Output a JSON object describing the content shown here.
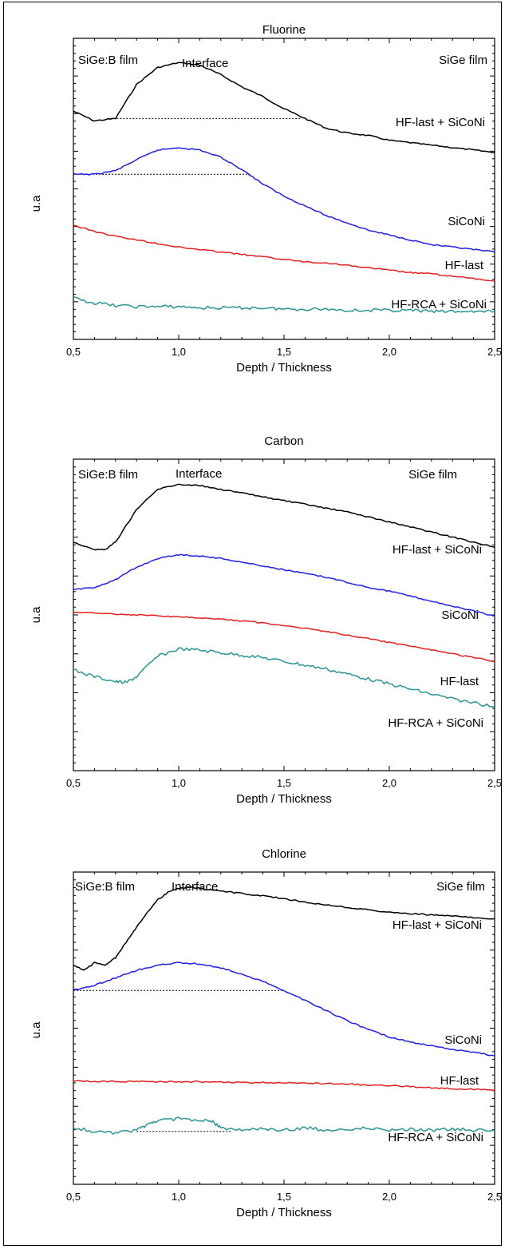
{
  "chart_data": [
    {
      "type": "line",
      "title": "Fluorine",
      "xlabel": "Depth / Thickness",
      "ylabel": "u.a",
      "xlim": [
        0.5,
        2.5
      ],
      "xticks": [
        "0,5",
        "1,0",
        "1,5",
        "2,0",
        "2,5"
      ],
      "region_labels": [
        "SiGe:B film",
        "Interface",
        "SiGe film"
      ],
      "series": [
        {
          "name": "HF-last + SiCoNi",
          "color": "#000000",
          "x": [
            0.5,
            0.6,
            0.7,
            0.8,
            0.9,
            1.0,
            1.1,
            1.2,
            1.3,
            1.4,
            1.5,
            1.6,
            1.7,
            1.8,
            1.9,
            2.0,
            2.1,
            2.2,
            2.3,
            2.4,
            2.5
          ],
          "y": [
            8.2,
            7.8,
            7.9,
            9.3,
            10.0,
            10.2,
            10.1,
            9.7,
            9.2,
            8.8,
            8.3,
            7.9,
            7.5,
            7.3,
            7.2,
            7.0,
            6.9,
            6.8,
            6.7,
            6.6,
            6.5
          ]
        },
        {
          "name": "SiCoNi",
          "color": "#1f1fe6",
          "x": [
            0.5,
            0.6,
            0.7,
            0.8,
            0.9,
            1.0,
            1.1,
            1.2,
            1.3,
            1.4,
            1.5,
            1.6,
            1.7,
            1.8,
            1.9,
            2.0,
            2.1,
            2.2,
            2.3,
            2.4,
            2.5
          ],
          "y": [
            5.6,
            5.6,
            5.75,
            6.2,
            6.6,
            6.7,
            6.6,
            6.3,
            5.8,
            5.2,
            4.7,
            4.3,
            3.9,
            3.6,
            3.3,
            3.1,
            2.9,
            2.7,
            2.6,
            2.5,
            2.4
          ]
        },
        {
          "name": "HF-last",
          "color": "#e62020",
          "x": [
            0.5,
            0.6,
            0.7,
            0.8,
            0.9,
            1.0,
            1.1,
            1.2,
            1.3,
            1.4,
            1.5,
            1.6,
            1.7,
            1.8,
            1.9,
            2.0,
            2.1,
            2.2,
            2.3,
            2.4,
            2.5
          ],
          "y": [
            3.5,
            3.25,
            3.05,
            2.9,
            2.75,
            2.6,
            2.5,
            2.4,
            2.3,
            2.2,
            2.1,
            2.0,
            1.95,
            1.85,
            1.75,
            1.65,
            1.55,
            1.5,
            1.4,
            1.3,
            1.2
          ]
        },
        {
          "name": "HF-RCA + SiCoNi",
          "color": "#2a9494",
          "x": [
            0.5,
            0.6,
            0.7,
            0.8,
            0.9,
            1.0,
            1.1,
            1.2,
            1.3,
            1.4,
            1.5,
            1.6,
            1.7,
            1.8,
            1.9,
            2.0,
            2.1,
            2.2,
            2.3,
            2.4,
            2.5
          ],
          "y": [
            0.5,
            0.3,
            0.2,
            0.15,
            0.15,
            0.15,
            0.1,
            0.1,
            0.1,
            0.1,
            0.05,
            0.05,
            0.05,
            0.0,
            0.0,
            0.0,
            0.0,
            -0.05,
            -0.05,
            -0.05,
            -0.05
          ]
        }
      ]
    },
    {
      "type": "line",
      "title": "Carbon",
      "xlabel": "Depth / Thickness",
      "ylabel": "u.a",
      "xlim": [
        0.5,
        2.5
      ],
      "xticks": [
        "0,5",
        "1,0",
        "1,5",
        "2,0",
        "2,5"
      ],
      "region_labels": [
        "SiGe:B film",
        "Interface",
        "SiGe film"
      ],
      "series": [
        {
          "name": "HF-last + SiCoNi",
          "color": "#000000",
          "x": [
            0.5,
            0.6,
            0.65,
            0.7,
            0.8,
            0.9,
            1.0,
            1.1,
            1.2,
            1.3,
            1.4,
            1.5,
            1.6,
            1.7,
            1.8,
            1.9,
            2.0,
            2.1,
            2.2,
            2.3,
            2.4,
            2.5
          ],
          "y": [
            7.9,
            7.6,
            7.6,
            7.9,
            9.2,
            10.0,
            10.2,
            10.15,
            10.0,
            9.85,
            9.7,
            9.55,
            9.4,
            9.25,
            9.1,
            8.9,
            8.7,
            8.5,
            8.3,
            8.1,
            7.9,
            7.7
          ]
        },
        {
          "name": "SiCoNi",
          "color": "#1f1fe6",
          "x": [
            0.5,
            0.6,
            0.7,
            0.8,
            0.9,
            1.0,
            1.1,
            1.2,
            1.3,
            1.4,
            1.5,
            1.6,
            1.7,
            1.8,
            1.9,
            2.0,
            2.1,
            2.2,
            2.3,
            2.4,
            2.5
          ],
          "y": [
            6.0,
            6.1,
            6.4,
            6.9,
            7.25,
            7.4,
            7.35,
            7.25,
            7.1,
            6.95,
            6.8,
            6.65,
            6.5,
            6.3,
            6.1,
            5.95,
            5.75,
            5.55,
            5.35,
            5.15,
            4.95
          ]
        },
        {
          "name": "HF-last",
          "color": "#e62020",
          "x": [
            0.5,
            0.6,
            0.7,
            0.8,
            0.9,
            1.0,
            1.1,
            1.2,
            1.3,
            1.4,
            1.5,
            1.6,
            1.7,
            1.8,
            1.9,
            2.0,
            2.1,
            2.2,
            2.3,
            2.4,
            2.5
          ],
          "y": [
            5.1,
            5.07,
            5.04,
            5.0,
            4.96,
            4.92,
            4.88,
            4.83,
            4.76,
            4.68,
            4.58,
            4.47,
            4.35,
            4.2,
            4.05,
            3.9,
            3.75,
            3.6,
            3.45,
            3.3,
            3.15
          ]
        },
        {
          "name": "HF-RCA + SiCoNi",
          "color": "#2a9494",
          "x": [
            0.5,
            0.6,
            0.7,
            0.75,
            0.8,
            0.9,
            1.0,
            1.1,
            1.2,
            1.3,
            1.4,
            1.5,
            1.6,
            1.7,
            1.8,
            1.9,
            2.0,
            2.1,
            2.2,
            2.3,
            2.4,
            2.5
          ],
          "y": [
            2.8,
            2.55,
            2.35,
            2.3,
            2.55,
            3.35,
            3.65,
            3.6,
            3.5,
            3.4,
            3.3,
            3.15,
            3.0,
            2.85,
            2.65,
            2.45,
            2.25,
            2.05,
            1.85,
            1.65,
            1.5,
            1.35
          ]
        }
      ]
    },
    {
      "type": "line",
      "title": "Chlorine",
      "xlabel": "Depth / Thickness",
      "ylabel": "u.a",
      "xlim": [
        0.5,
        2.5
      ],
      "xticks": [
        "0,5",
        "1,0",
        "1,5",
        "2,0",
        "2,5"
      ],
      "region_labels": [
        "SiGe:B film",
        "Interface",
        "SiGe film"
      ],
      "series": [
        {
          "name": "HF-last + SiCoNi",
          "color": "#000000",
          "x": [
            0.5,
            0.55,
            0.6,
            0.65,
            0.7,
            0.75,
            0.8,
            0.85,
            0.9,
            0.95,
            1.0,
            1.05,
            1.1,
            1.2,
            1.3,
            1.4,
            1.5,
            1.6,
            1.7,
            1.8,
            1.9,
            2.0,
            2.1,
            2.2,
            2.3,
            2.4,
            2.5
          ],
          "y": [
            7.5,
            7.3,
            7.6,
            7.5,
            7.8,
            8.4,
            9.0,
            9.6,
            10.1,
            10.4,
            10.55,
            10.6,
            10.55,
            10.45,
            10.35,
            10.25,
            10.15,
            10.0,
            9.9,
            9.8,
            9.7,
            9.6,
            9.55,
            9.5,
            9.45,
            9.4,
            9.35
          ]
        },
        {
          "name": "SiCoNi",
          "color": "#1f1fe6",
          "x": [
            0.5,
            0.6,
            0.7,
            0.8,
            0.9,
            1.0,
            1.1,
            1.2,
            1.3,
            1.4,
            1.5,
            1.6,
            1.7,
            1.8,
            1.9,
            2.0,
            2.1,
            2.2,
            2.3,
            2.4,
            2.5
          ],
          "y": [
            6.5,
            6.7,
            7.0,
            7.3,
            7.5,
            7.6,
            7.55,
            7.4,
            7.15,
            6.85,
            6.5,
            6.1,
            5.7,
            5.3,
            4.95,
            4.65,
            4.45,
            4.3,
            4.15,
            4.05,
            3.9
          ]
        },
        {
          "name": "HF-last",
          "color": "#e62020",
          "x": [
            0.5,
            0.6,
            0.7,
            0.8,
            0.9,
            1.0,
            1.1,
            1.2,
            1.3,
            1.4,
            1.5,
            1.6,
            1.7,
            1.8,
            1.9,
            2.0,
            2.1,
            2.2,
            2.3,
            2.4,
            2.5
          ],
          "y": [
            2.9,
            2.88,
            2.88,
            2.88,
            2.88,
            2.88,
            2.87,
            2.86,
            2.85,
            2.84,
            2.83,
            2.82,
            2.8,
            2.78,
            2.75,
            2.72,
            2.68,
            2.64,
            2.6,
            2.57,
            2.54
          ]
        },
        {
          "name": "HF-RCA + SiCoNi",
          "color": "#2a9494",
          "x": [
            0.5,
            0.6,
            0.7,
            0.8,
            0.85,
            0.9,
            1.0,
            1.1,
            1.15,
            1.2,
            1.3,
            1.4,
            1.5,
            1.6,
            1.7,
            1.8,
            1.9,
            2.0,
            2.1,
            2.2,
            2.3,
            2.4,
            2.5
          ],
          "y": [
            1.05,
            0.9,
            0.85,
            0.95,
            1.15,
            1.35,
            1.4,
            1.3,
            1.35,
            1.05,
            0.95,
            1.0,
            0.95,
            1.05,
            0.95,
            1.0,
            1.05,
            0.95,
            1.0,
            0.95,
            1.0,
            0.95,
            0.95
          ]
        }
      ]
    }
  ]
}
